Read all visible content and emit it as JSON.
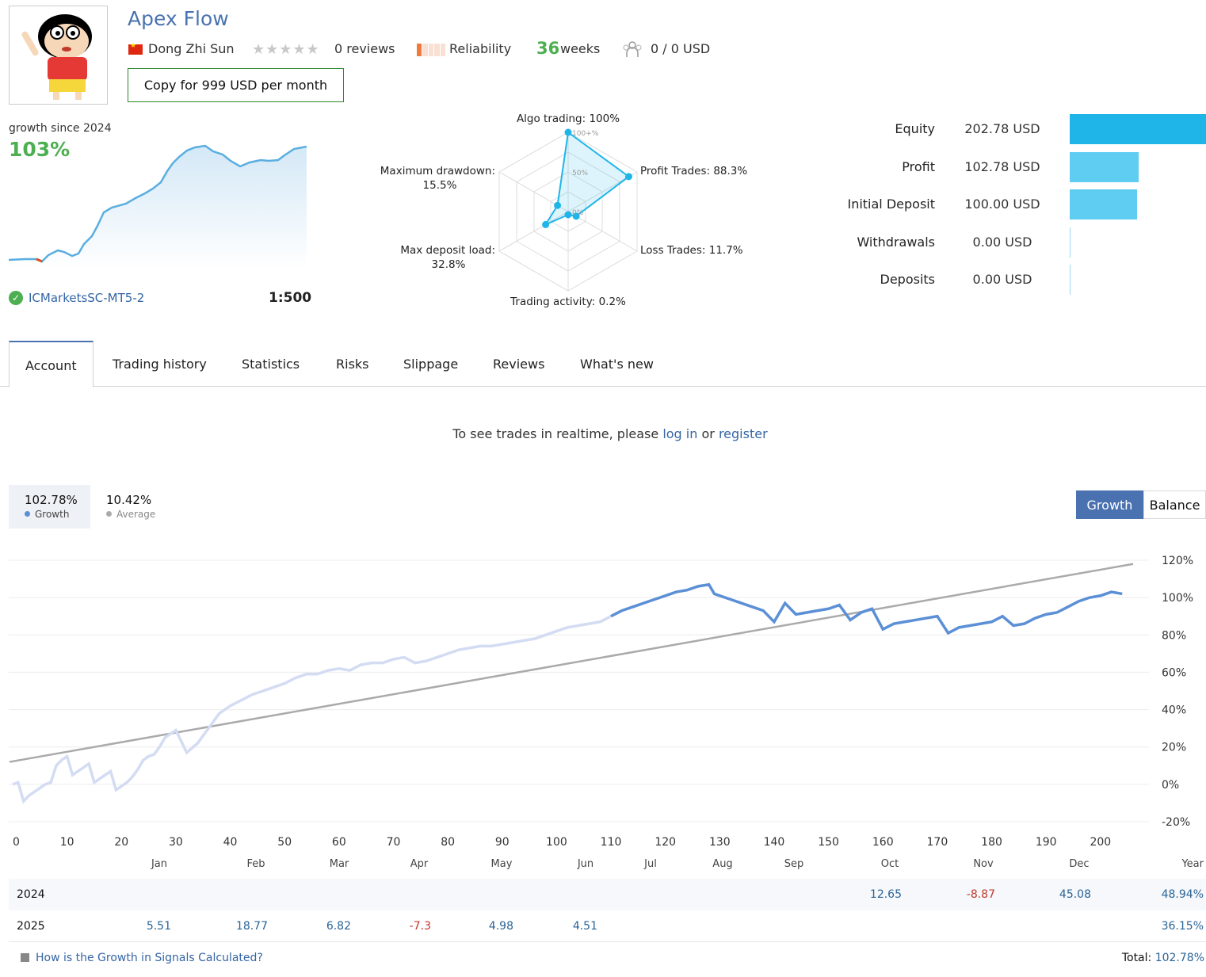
{
  "header": {
    "title": "Apex Flow",
    "author": "Dong Zhi Sun",
    "reviews": "0 reviews",
    "reliability_label": "Reliability",
    "weeks_num": "36",
    "weeks_label": "weeks",
    "subscribers": "0 / 0 USD",
    "copy_button": "Copy for 999 USD per month",
    "icons": [
      "flag-china-icon",
      "star-icon",
      "reliability-bar-icon",
      "subscribers-icon"
    ]
  },
  "growth": {
    "label": "growth since 2024",
    "value": "103%",
    "broker": "ICMarketsSC-MT5-2",
    "leverage": "1:500"
  },
  "radar": {
    "algo": "Algo trading: 100%",
    "profit": "Profit Trades: 88.3%",
    "loss": "Loss Trades: 11.7%",
    "activity": "Trading activity: 0.2%",
    "load_1": "Max deposit load:",
    "load_2": "32.8%",
    "dd_1": "Maximum drawdown:",
    "dd_2": "15.5%",
    "tick_100": "100+%",
    "tick_50": "50%",
    "tick_0": "0%",
    "values": {
      "algo": 100,
      "profit": 88.3,
      "loss": 11.7,
      "activity": 0.2,
      "load": 32.8,
      "drawdown": 15.5
    }
  },
  "summary": [
    {
      "label": "Equity",
      "value": "202.78 USD",
      "amount": 202.78,
      "color": "#1fb5e8"
    },
    {
      "label": "Profit",
      "value": "102.78 USD",
      "amount": 102.78,
      "color": "#5fcdf2"
    },
    {
      "label": "Initial Deposit",
      "value": "100.00 USD",
      "amount": 100.0,
      "color": "#5fcdf2"
    },
    {
      "label": "Withdrawals",
      "value": "0.00 USD",
      "amount": 0,
      "color": "#9ad9f0"
    },
    {
      "label": "Deposits",
      "value": "0.00 USD",
      "amount": 0,
      "color": "#9ad9f0"
    }
  ],
  "tabs": [
    "Account",
    "Trading history",
    "Statistics",
    "Risks",
    "Slippage",
    "Reviews",
    "What's new"
  ],
  "login": {
    "prefix": "To see trades in realtime, please",
    "login": "log in",
    "or": "or",
    "register": "register"
  },
  "stats": {
    "growth_value": "102.78%",
    "growth_label": "Growth",
    "average_value": "10.42%",
    "average_label": "Average"
  },
  "chart_buttons": {
    "growth": "Growth",
    "balance": "Balance"
  },
  "chart_data": {
    "type": "line",
    "x_ticks": [
      "0",
      "10",
      "20",
      "30",
      "40",
      "50",
      "60",
      "70",
      "80",
      "90",
      "100",
      "110",
      "120",
      "130",
      "140",
      "150",
      "160",
      "170",
      "180",
      "190",
      "200"
    ],
    "y_ticks": [
      "120%",
      "100%",
      "80%",
      "60%",
      "40%",
      "20%",
      "0%",
      "-20%"
    ],
    "xlim": [
      0,
      206
    ],
    "ylim": [
      -20,
      120
    ],
    "series": [
      {
        "name": "Growth",
        "x": [
          0,
          1,
          2,
          3,
          4,
          5,
          6,
          7,
          8,
          9,
          10,
          11,
          12,
          13,
          14,
          15,
          16,
          17,
          18,
          19,
          20,
          21,
          22,
          23,
          24,
          25,
          26,
          27,
          28,
          29,
          30,
          32,
          34,
          36,
          38,
          40,
          42,
          44,
          46,
          48,
          50,
          52,
          54,
          56,
          58,
          60,
          62,
          64,
          66,
          68,
          70,
          72,
          74,
          76,
          78,
          80,
          82,
          84,
          86,
          88,
          90,
          92,
          94,
          96,
          98,
          100,
          102,
          104,
          106,
          108,
          110,
          112,
          114,
          116,
          118,
          120,
          122,
          124,
          126,
          128,
          129,
          130,
          132,
          134,
          136,
          138,
          140,
          142,
          144,
          146,
          148,
          150,
          152,
          154,
          156,
          158,
          160,
          162,
          164,
          166,
          168,
          170,
          172,
          174,
          176,
          178,
          180,
          182,
          184,
          186,
          188,
          190,
          192,
          194,
          196,
          198,
          200,
          202,
          204
        ],
        "y": [
          0,
          1,
          -9,
          -6,
          -4,
          -2,
          0,
          1,
          10,
          13,
          15,
          5,
          7,
          9,
          11,
          1,
          3,
          5,
          7,
          -3,
          -1,
          1,
          4,
          8,
          13,
          15,
          16,
          20,
          25,
          27,
          29,
          17,
          22,
          30,
          38,
          42,
          45,
          48,
          50,
          52,
          54,
          57,
          59,
          59,
          61,
          62,
          61,
          64,
          65,
          65,
          67,
          68,
          65,
          66,
          68,
          70,
          72,
          73,
          74,
          74,
          75,
          76,
          77,
          78,
          80,
          82,
          84,
          85,
          86,
          87,
          90,
          93,
          95,
          97,
          99,
          101,
          103,
          104,
          106,
          107,
          102,
          101,
          99,
          97,
          95,
          93,
          87,
          97,
          91,
          92,
          93,
          94,
          96,
          88,
          92,
          94,
          83,
          86,
          87,
          88,
          89,
          90,
          81,
          84,
          85,
          86,
          87,
          90,
          85,
          86,
          89,
          91,
          92,
          95,
          98,
          100,
          101,
          103,
          102
        ],
        "color": "#5b8fd6"
      },
      {
        "name": "Average",
        "x": [
          0,
          206
        ],
        "y": [
          12,
          118
        ],
        "color": "#aaaaaa"
      }
    ],
    "split_x": 110
  },
  "monthly": {
    "months": [
      "Jan",
      "Feb",
      "Mar",
      "Apr",
      "May",
      "Jun",
      "Jul",
      "Aug",
      "Sep",
      "Oct",
      "Nov",
      "Dec",
      "Year"
    ],
    "rows": [
      {
        "year": "2024",
        "cells": [
          "",
          "",
          "",
          "",
          "",
          "",
          "",
          "",
          "",
          "12.65",
          "-8.87",
          "45.08",
          "48.94%"
        ]
      },
      {
        "year": "2025",
        "cells": [
          "5.51",
          "18.77",
          "6.82",
          "-7.3",
          "4.98",
          "4.51",
          "",
          "",
          "",
          "",
          "",
          "",
          "36.15%"
        ]
      }
    ]
  },
  "footer": {
    "how": "How is the Growth in Signals Calculated?",
    "total_label": "Total:",
    "total_value": "102.78%"
  }
}
